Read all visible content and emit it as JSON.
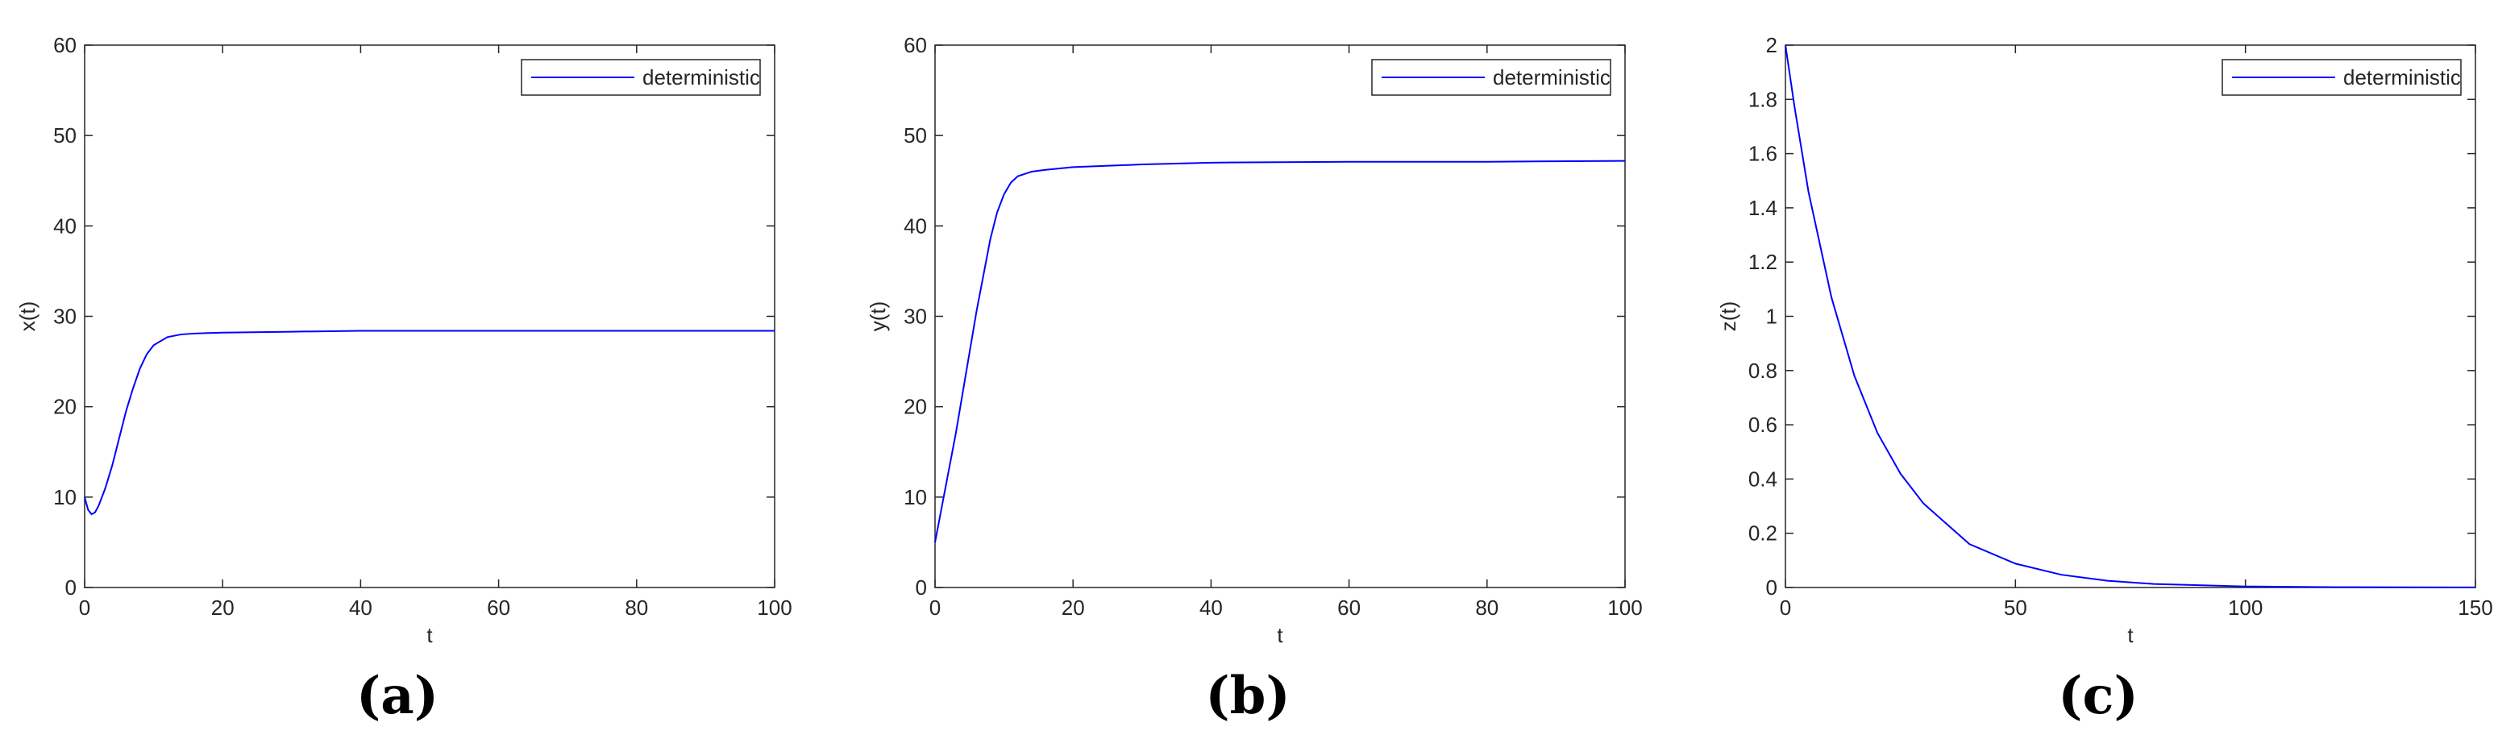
{
  "chart_data": [
    {
      "type": "line",
      "caption": "(a)",
      "xlabel": "t",
      "ylabel": "x(t)",
      "x": [
        0,
        0.5,
        1,
        1.5,
        2,
        3,
        4,
        5,
        6,
        7,
        8,
        9,
        10,
        12,
        14,
        16,
        20,
        30,
        40,
        60,
        80,
        100
      ],
      "series": [
        {
          "name": "deterministic",
          "color": "#0000ff",
          "values": [
            10,
            8.6,
            8.1,
            8.3,
            9,
            11,
            13.5,
            16.5,
            19.5,
            22,
            24.2,
            25.8,
            26.8,
            27.7,
            28,
            28.1,
            28.2,
            28.3,
            28.4,
            28.4,
            28.4,
            28.4
          ]
        }
      ],
      "xlim": [
        0,
        100
      ],
      "ylim": [
        0,
        60
      ],
      "xticks": [
        0,
        20,
        40,
        60,
        80,
        100
      ],
      "yticks": [
        0,
        10,
        20,
        30,
        40,
        50,
        60
      ],
      "legend": "upper right"
    },
    {
      "type": "line",
      "caption": "(b)",
      "xlabel": "t",
      "ylabel": "y(t)",
      "x": [
        0,
        1,
        2,
        3,
        4,
        5,
        6,
        7,
        8,
        9,
        10,
        11,
        12,
        14,
        16,
        20,
        30,
        40,
        60,
        80,
        100
      ],
      "series": [
        {
          "name": "deterministic",
          "color": "#0000ff",
          "values": [
            5,
            9,
            13,
            17,
            21.5,
            26,
            30.5,
            34.5,
            38.5,
            41.5,
            43.5,
            44.8,
            45.5,
            46,
            46.2,
            46.5,
            46.8,
            47,
            47.1,
            47.1,
            47.2
          ]
        }
      ],
      "xlim": [
        0,
        100
      ],
      "ylim": [
        0,
        60
      ],
      "xticks": [
        0,
        20,
        40,
        60,
        80,
        100
      ],
      "yticks": [
        0,
        10,
        20,
        30,
        40,
        50,
        60
      ],
      "legend": "upper right"
    },
    {
      "type": "line",
      "caption": "(c)",
      "xlabel": "t",
      "ylabel": "z(t)",
      "x": [
        0,
        2,
        5,
        10,
        15,
        20,
        25,
        30,
        40,
        50,
        60,
        70,
        80,
        100,
        120,
        150
      ],
      "series": [
        {
          "name": "deterministic",
          "color": "#0000ff",
          "values": [
            2,
            1.77,
            1.46,
            1.07,
            0.78,
            0.57,
            0.42,
            0.31,
            0.16,
            0.088,
            0.047,
            0.025,
            0.013,
            0.0039,
            0.0011,
            0.0002
          ]
        }
      ],
      "xlim": [
        0,
        150
      ],
      "ylim": [
        0,
        2
      ],
      "xticks": [
        0,
        50,
        100,
        150
      ],
      "yticks": [
        0,
        0.2,
        0.4,
        0.6,
        0.8,
        1,
        1.2,
        1.4,
        1.6,
        1.8,
        2
      ],
      "legend": "upper right"
    }
  ]
}
